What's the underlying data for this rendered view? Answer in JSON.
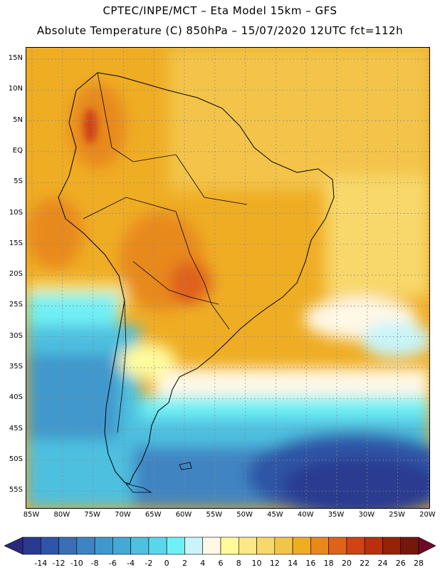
{
  "header": {
    "title_line1": "CPTEC/INPE/MCT –  Eta Model 15km – GFS",
    "title_line2": "Absolute Temperature (C) 850hPa – 15/07/2020 12UTC fct=112h"
  },
  "axes": {
    "lat_labels": [
      "15N",
      "10N",
      "5N",
      "EQ",
      "5S",
      "10S",
      "15S",
      "20S",
      "25S",
      "30S",
      "35S",
      "40S",
      "45S",
      "50S",
      "55S"
    ],
    "lon_labels": [
      "85W",
      "80W",
      "75W",
      "70W",
      "65W",
      "60W",
      "55W",
      "50W",
      "45W",
      "40W",
      "35W",
      "30W",
      "25W",
      "20W"
    ]
  },
  "colorbar": {
    "labels": [
      "-14",
      "-12",
      "-10",
      "-8",
      "-6",
      "-4",
      "-2",
      "0",
      "2",
      "4",
      "6",
      "8",
      "10",
      "12",
      "14",
      "16",
      "18",
      "20",
      "22",
      "24",
      "26",
      "28"
    ],
    "colors": [
      "#2a3a90",
      "#2f55a6",
      "#3a6fb5",
      "#3f84c2",
      "#3f98cc",
      "#45a9d6",
      "#4ec0e0",
      "#5ad6ea",
      "#6ff0f4",
      "#c8f4fa",
      "#fff8e6",
      "#fffb9c",
      "#fce888",
      "#f8d86a",
      "#f3c44a",
      "#efad24",
      "#e8891a",
      "#df621a",
      "#cf4314",
      "#b8300e",
      "#962208",
      "#74180a"
    ],
    "underflow_color": "#2a2a78",
    "overflow_color": "#6e0a28"
  }
}
